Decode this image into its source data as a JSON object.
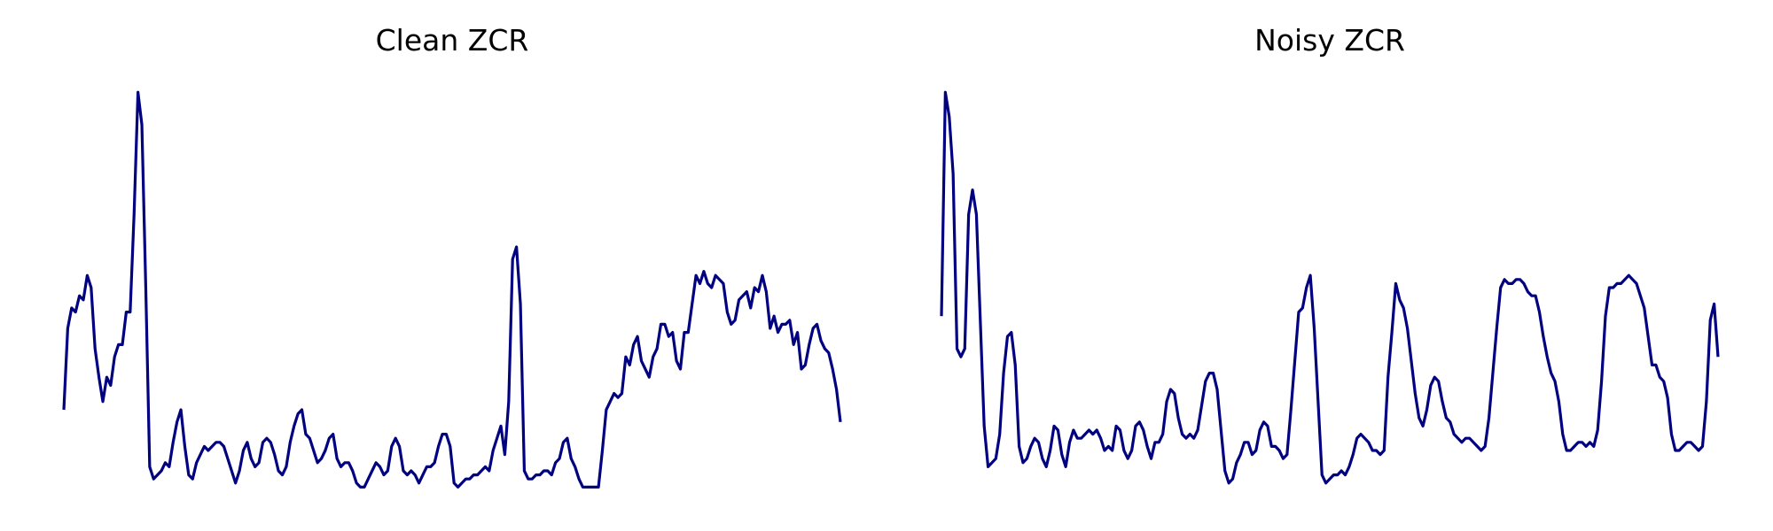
{
  "chart_data": [
    {
      "type": "line",
      "title": "Clean ZCR",
      "xlabel": "",
      "ylabel": "",
      "axes": "off",
      "grid": false,
      "color": "#000080",
      "xlim": [
        0,
        155
      ],
      "ylim": [
        0,
        1.0
      ],
      "series": [
        {
          "values": [
            0.2,
            0.4,
            0.45,
            0.44,
            0.48,
            0.47,
            0.53,
            0.5,
            0.35,
            0.28,
            0.22,
            0.28,
            0.26,
            0.33,
            0.36,
            0.36,
            0.44,
            0.44,
            0.68,
            0.98,
            0.9,
            0.5,
            0.06,
            0.03,
            0.04,
            0.05,
            0.07,
            0.06,
            0.12,
            0.17,
            0.2,
            0.11,
            0.04,
            0.03,
            0.07,
            0.09,
            0.11,
            0.1,
            0.11,
            0.12,
            0.12,
            0.11,
            0.08,
            0.05,
            0.02,
            0.05,
            0.1,
            0.12,
            0.08,
            0.06,
            0.07,
            0.12,
            0.13,
            0.12,
            0.09,
            0.05,
            0.04,
            0.06,
            0.12,
            0.16,
            0.19,
            0.2,
            0.14,
            0.13,
            0.1,
            0.07,
            0.08,
            0.1,
            0.13,
            0.14,
            0.08,
            0.06,
            0.07,
            0.07,
            0.05,
            0.02,
            0.01,
            0.01,
            0.03,
            0.05,
            0.07,
            0.06,
            0.04,
            0.05,
            0.11,
            0.13,
            0.11,
            0.05,
            0.04,
            0.05,
            0.04,
            0.02,
            0.04,
            0.06,
            0.06,
            0.07,
            0.11,
            0.14,
            0.14,
            0.11,
            0.02,
            0.01,
            0.02,
            0.03,
            0.03,
            0.04,
            0.04,
            0.05,
            0.06,
            0.05,
            0.1,
            0.13,
            0.16,
            0.09,
            0.22,
            0.57,
            0.6,
            0.46,
            0.05,
            0.03,
            0.03,
            0.04,
            0.04,
            0.05,
            0.05,
            0.04,
            0.07,
            0.08,
            0.12,
            0.13,
            0.08,
            0.06,
            0.03,
            0.01,
            0.01,
            0.01,
            0.01,
            0.01,
            0.1,
            0.2,
            0.22,
            0.24,
            0.23,
            0.24,
            0.33,
            0.31,
            0.36,
            0.38,
            0.32,
            0.3,
            0.28,
            0.33,
            0.35,
            0.41,
            0.41,
            0.38,
            0.39,
            0.32,
            0.3,
            0.39,
            0.39,
            0.46,
            0.53,
            0.51,
            0.54,
            0.51,
            0.5,
            0.53,
            0.52,
            0.51,
            0.44,
            0.41,
            0.42,
            0.47,
            0.48,
            0.49,
            0.45,
            0.5,
            0.49,
            0.53,
            0.49,
            0.4,
            0.43,
            0.39,
            0.41,
            0.41,
            0.42,
            0.36,
            0.39,
            0.3,
            0.31,
            0.36,
            0.4,
            0.41,
            0.37,
            0.35,
            0.34,
            0.3,
            0.25,
            0.17
          ]
        }
      ]
    },
    {
      "type": "line",
      "title": "Noisy ZCR",
      "xlabel": "",
      "ylabel": "",
      "axes": "off",
      "grid": false,
      "color": "#000080",
      "xlim": [
        0,
        155
      ],
      "ylim": [
        0,
        1.0
      ],
      "series": [
        {
          "values": [
            0.43,
            0.98,
            0.92,
            0.78,
            0.35,
            0.33,
            0.35,
            0.68,
            0.74,
            0.68,
            0.42,
            0.16,
            0.06,
            0.07,
            0.08,
            0.14,
            0.29,
            0.38,
            0.39,
            0.31,
            0.11,
            0.07,
            0.08,
            0.11,
            0.13,
            0.12,
            0.08,
            0.06,
            0.1,
            0.16,
            0.15,
            0.09,
            0.06,
            0.12,
            0.15,
            0.13,
            0.13,
            0.14,
            0.15,
            0.14,
            0.15,
            0.13,
            0.1,
            0.11,
            0.1,
            0.16,
            0.15,
            0.1,
            0.08,
            0.1,
            0.16,
            0.17,
            0.15,
            0.11,
            0.08,
            0.12,
            0.12,
            0.14,
            0.22,
            0.25,
            0.24,
            0.18,
            0.14,
            0.13,
            0.14,
            0.13,
            0.15,
            0.21,
            0.27,
            0.29,
            0.29,
            0.25,
            0.15,
            0.05,
            0.02,
            0.03,
            0.07,
            0.09,
            0.12,
            0.12,
            0.09,
            0.1,
            0.15,
            0.17,
            0.16,
            0.11,
            0.11,
            0.1,
            0.08,
            0.09,
            0.2,
            0.32,
            0.44,
            0.45,
            0.5,
            0.53,
            0.4,
            0.22,
            0.04,
            0.02,
            0.03,
            0.04,
            0.04,
            0.05,
            0.04,
            0.06,
            0.09,
            0.13,
            0.14,
            0.13,
            0.12,
            0.1,
            0.1,
            0.09,
            0.1,
            0.28,
            0.39,
            0.51,
            0.47,
            0.45,
            0.4,
            0.32,
            0.24,
            0.18,
            0.16,
            0.2,
            0.26,
            0.28,
            0.27,
            0.22,
            0.18,
            0.17,
            0.14,
            0.13,
            0.12,
            0.13,
            0.13,
            0.12,
            0.11,
            0.1,
            0.11,
            0.18,
            0.29,
            0.4,
            0.5,
            0.52,
            0.51,
            0.51,
            0.52,
            0.52,
            0.51,
            0.49,
            0.48,
            0.48,
            0.44,
            0.38,
            0.33,
            0.29,
            0.27,
            0.22,
            0.14,
            0.1,
            0.1,
            0.11,
            0.12,
            0.12,
            0.11,
            0.12,
            0.11,
            0.15,
            0.27,
            0.43,
            0.5,
            0.5,
            0.51,
            0.51,
            0.52,
            0.53,
            0.52,
            0.51,
            0.48,
            0.45,
            0.38,
            0.31,
            0.31,
            0.28,
            0.27,
            0.23,
            0.14,
            0.1,
            0.1,
            0.11,
            0.12,
            0.12,
            0.11,
            0.1,
            0.11,
            0.22,
            0.42,
            0.46,
            0.33
          ]
        }
      ]
    }
  ]
}
